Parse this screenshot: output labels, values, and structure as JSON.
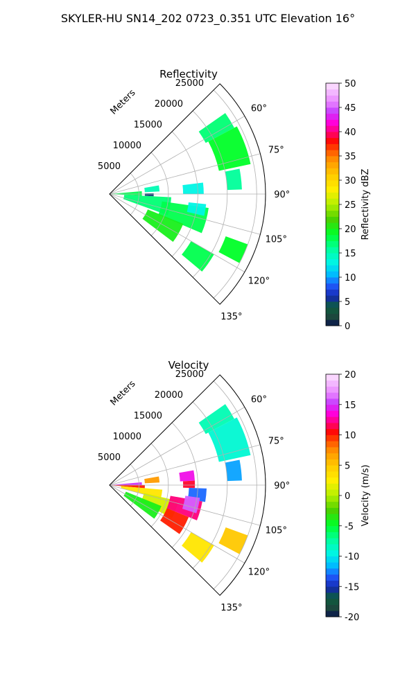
{
  "figure": {
    "suptitle": "SKYLER-HU  SN14_202  0723_0.351 UTC Elevation 16°"
  },
  "chart_data": [
    {
      "type": "polar_sector",
      "title": "Reflectivity",
      "radial_label": "Meters",
      "range_rings": [
        5000,
        10000,
        15000,
        20000,
        25000
      ],
      "range_max": 26500,
      "azimuth_range_deg": [
        45,
        135
      ],
      "azimuth_ticks": [
        {
          "angle": 60,
          "label": "60°"
        },
        {
          "angle": 75,
          "label": "75°"
        },
        {
          "angle": 90,
          "label": "90°"
        },
        {
          "angle": 105,
          "label": "105°"
        },
        {
          "angle": 120,
          "label": "120°"
        },
        {
          "angle": 135,
          "label": "135°"
        }
      ],
      "colorbar": {
        "label": "Reflectivity dBZ",
        "min": 0,
        "max": 50,
        "ticks": [
          0,
          5,
          10,
          15,
          20,
          25,
          30,
          35,
          40,
          45,
          50
        ]
      },
      "echoes": [
        {
          "az": [
            55,
            62
          ],
          "r": [
            18500,
            24000
          ],
          "value": 17
        },
        {
          "az": [
            62,
            78
          ],
          "r": [
            19000,
            24500
          ],
          "value": 19
        },
        {
          "az": [
            79,
            88
          ],
          "r": [
            20000,
            22500
          ],
          "value": 16
        },
        {
          "az": [
            83,
            90
          ],
          "r": [
            12500,
            16000
          ],
          "value": 13
        },
        {
          "az": [
            80,
            87
          ],
          "r": [
            6000,
            8500
          ],
          "value": 15
        },
        {
          "az": [
            89,
            93
          ],
          "r": [
            6000,
            7500
          ],
          "value": 5
        },
        {
          "az": [
            85,
            93
          ],
          "r": [
            300,
            5500
          ],
          "value": 18
        },
        {
          "az": [
            93,
            110
          ],
          "r": [
            2500,
            10500
          ],
          "value": 17
        },
        {
          "az": [
            98,
            113
          ],
          "r": [
            9000,
            17000
          ],
          "value": 18
        },
        {
          "az": [
            112,
            127
          ],
          "r": [
            7000,
            13500
          ],
          "value": 20
        },
        {
          "az": [
            96,
            103
          ],
          "r": [
            13500,
            16500
          ],
          "value": 13
        },
        {
          "az": [
            110,
            118
          ],
          "r": [
            21000,
            25000
          ],
          "value": 19
        },
        {
          "az": [
            120,
            130
          ],
          "r": [
            16000,
            20500
          ],
          "value": 18
        }
      ]
    },
    {
      "type": "polar_sector",
      "title": "Velocity",
      "radial_label": "Meters",
      "range_rings": [
        5000,
        10000,
        15000,
        20000,
        25000
      ],
      "range_max": 26500,
      "azimuth_range_deg": [
        45,
        135
      ],
      "azimuth_ticks": [
        {
          "angle": 60,
          "label": "60°"
        },
        {
          "angle": 75,
          "label": "75°"
        },
        {
          "angle": 90,
          "label": "90°"
        },
        {
          "angle": 105,
          "label": "105°"
        },
        {
          "angle": 120,
          "label": "120°"
        },
        {
          "angle": 135,
          "label": "135°"
        }
      ],
      "colorbar": {
        "label": "Velocity (m/s)",
        "min": -20,
        "max": 20,
        "ticks": [
          -20,
          -15,
          -10,
          -5,
          0,
          5,
          10,
          15,
          20
        ]
      },
      "echoes": [
        {
          "az": [
            55,
            62
          ],
          "r": [
            18500,
            24000
          ],
          "value": -8
        },
        {
          "az": [
            62,
            78
          ],
          "r": [
            19000,
            24500
          ],
          "value": -9
        },
        {
          "az": [
            79,
            88
          ],
          "r": [
            20000,
            22500
          ],
          "value": -12
        },
        {
          "az": [
            80,
            87
          ],
          "r": [
            12000,
            14500
          ],
          "value": 14
        },
        {
          "az": [
            87,
            92
          ],
          "r": [
            12500,
            14500
          ],
          "value": 11
        },
        {
          "az": [
            92,
            100
          ],
          "r": [
            13500,
            16500
          ],
          "value": -13
        },
        {
          "az": [
            80,
            87
          ],
          "r": [
            6000,
            8500
          ],
          "value": 7
        },
        {
          "az": [
            85,
            90
          ],
          "r": [
            300,
            5500
          ],
          "value": 15
        },
        {
          "az": [
            90,
            95
          ],
          "r": [
            300,
            6000
          ],
          "value": 10
        },
        {
          "az": [
            95,
            105
          ],
          "r": [
            2000,
            9000
          ],
          "value": 3
        },
        {
          "az": [
            103,
            118
          ],
          "r": [
            6000,
            12000
          ],
          "value": 1
        },
        {
          "az": [
            112,
            127
          ],
          "r": [
            3000,
            9500
          ],
          "value": -4
        },
        {
          "az": [
            100,
            112
          ],
          "r": [
            10500,
            16000
          ],
          "value": 12
        },
        {
          "az": [
            112,
            125
          ],
          "r": [
            10500,
            14500
          ],
          "value": 10
        },
        {
          "az": [
            98,
            108
          ],
          "r": [
            13000,
            15500
          ],
          "value": 16
        },
        {
          "az": [
            110,
            118
          ],
          "r": [
            21000,
            25000
          ],
          "value": 5
        },
        {
          "az": [
            120,
            130
          ],
          "r": [
            16000,
            20500
          ],
          "value": 3
        }
      ]
    }
  ]
}
